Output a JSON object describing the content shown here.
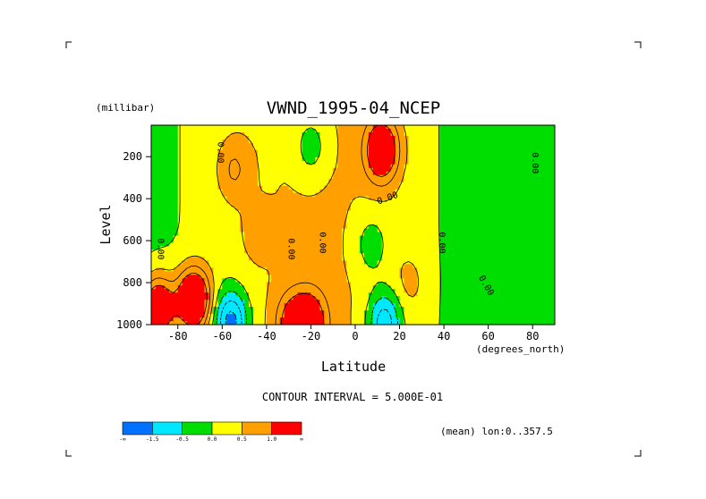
{
  "chart_data": {
    "type": "heatmap",
    "title": "VWND_1995-04_NCEP",
    "xlabel": "Latitude",
    "x_unit": "(degrees_north)",
    "ylabel": "Level",
    "y_unit": "(millibar)",
    "xlim": [
      -92,
      90
    ],
    "ylim": [
      1000,
      50
    ],
    "y_inverted": true,
    "xticks": [
      "-80",
      "-60",
      "-40",
      "-20",
      "0",
      "20",
      "40",
      "60",
      "80"
    ],
    "yticks": [
      "200",
      "400",
      "600",
      "800",
      "1000"
    ],
    "contour_interval_text": "CONTOUR INTERVAL = 5.000E-01",
    "mean_text": "(mean) lon:0..357.5",
    "contour_labels": [
      "0.00",
      "0.00",
      "0.00",
      "0.00",
      "0.00",
      "0.00",
      "0.00",
      "0.00"
    ],
    "levels": [
      -1.5,
      -1.0,
      -0.5,
      0.0,
      0.5,
      1.0,
      1.5
    ],
    "colorbar": {
      "colors": [
        "#0070ff",
        "#00e8ff",
        "#00dd00",
        "#ffff00",
        "#ffa000",
        "#ff0000"
      ],
      "labels": [
        "-∞",
        "-1.5",
        "-0.5",
        "0.0",
        "0.5",
        "1.0",
        "∞"
      ]
    },
    "features": [
      {
        "lat": -89,
        "p": 920,
        "value": 2.6
      },
      {
        "lat": -73,
        "p": 880,
        "value": 2.9
      },
      {
        "lat": -56,
        "p": 985,
        "value": -2.0
      },
      {
        "lat": -28,
        "p": 1000,
        "value": 1.5
      },
      {
        "lat": -20,
        "p": 990,
        "value": 1.6
      },
      {
        "lat": 13,
        "p": 990,
        "value": -1.7
      },
      {
        "lat": -55,
        "p": 260,
        "value": 0.8
      },
      {
        "lat": -20,
        "p": 150,
        "value": -0.8
      },
      {
        "lat": 12,
        "p": 170,
        "value": 2.2
      },
      {
        "lat": 7,
        "p": 620,
        "value": -0.7
      },
      {
        "lat": -45,
        "p": 560,
        "value": 0.3
      },
      {
        "lat": 25,
        "p": 800,
        "value": 0.4
      }
    ]
  }
}
